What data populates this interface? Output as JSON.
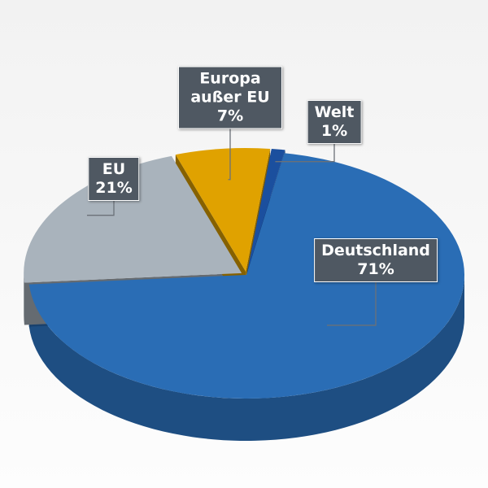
{
  "chart_data": {
    "type": "pie",
    "categories": [
      "Deutschland",
      "EU",
      "Europa außer EU",
      "Welt"
    ],
    "values": [
      71,
      21,
      7,
      1
    ],
    "value_labels": [
      "71%",
      "21%",
      "7%",
      "1%"
    ],
    "colors": [
      "#2a6db5",
      "#a9b3bc",
      "#e0a200",
      "#1b4f9e"
    ]
  }
}
